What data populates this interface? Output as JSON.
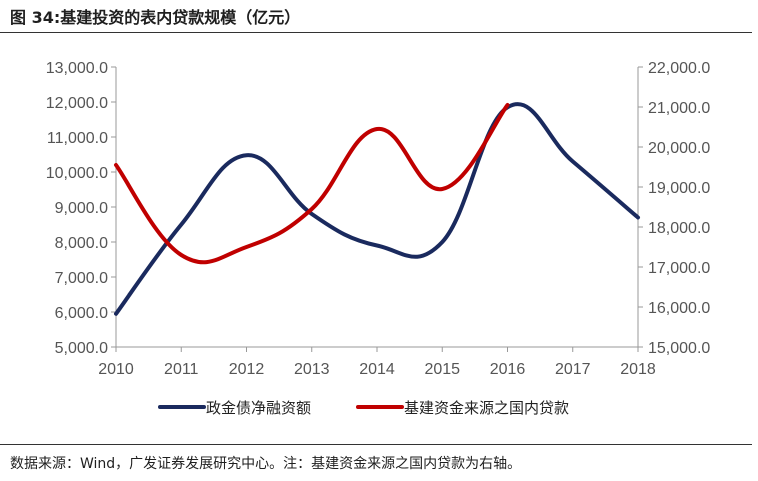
{
  "header": {
    "title": "图 34:基建投资的表内贷款规模（亿元）"
  },
  "footer": {
    "source": "数据来源：Wind，广发证券发展研究中心。注：基建资金来源之国内贷款为右轴。"
  },
  "chart_data": {
    "type": "line",
    "x": [
      "2010",
      "2011",
      "2012",
      "2013",
      "2014",
      "2015",
      "2016",
      "2017",
      "2018"
    ],
    "left_axis": {
      "ylim": [
        5000,
        13000
      ],
      "ticks": [
        "5,000.0",
        "6,000.0",
        "7,000.0",
        "8,000.0",
        "9,000.0",
        "10,000.0",
        "11,000.0",
        "12,000.0",
        "13,000.0"
      ]
    },
    "right_axis": {
      "ylim": [
        15000,
        22000
      ],
      "ticks": [
        "15,000.0",
        "16,000.0",
        "17,000.0",
        "18,000.0",
        "19,000.0",
        "20,000.0",
        "21,000.0",
        "22,000.0"
      ]
    },
    "series": [
      {
        "name": "政金债净融资额",
        "axis": "left",
        "color": "#1a2a5e",
        "points": [
          [
            2010,
            5950
          ],
          [
            2011,
            8500
          ],
          [
            2012,
            10480
          ],
          [
            2013,
            8800
          ],
          [
            2014,
            7900
          ],
          [
            2015,
            8000
          ],
          [
            2016,
            11850
          ],
          [
            2017,
            10300
          ],
          [
            2018,
            8700
          ]
        ]
      },
      {
        "name": "基建资金来源之国内贷款",
        "axis": "right",
        "color": "#c00000",
        "points": [
          [
            2010,
            19550
          ],
          [
            2011,
            17300
          ],
          [
            2012,
            17500
          ],
          [
            2013,
            18450
          ],
          [
            2014,
            20450
          ],
          [
            2015,
            18950
          ],
          [
            2016,
            21050
          ]
        ]
      }
    ],
    "legend": "bottom",
    "grid": false
  }
}
